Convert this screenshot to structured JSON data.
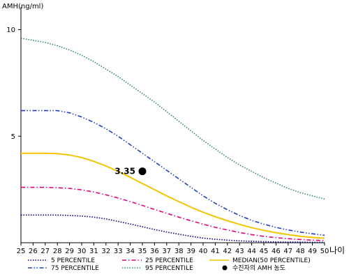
{
  "chart_data": {
    "type": "line",
    "ylabel": "AMH(ng/ml)",
    "xlabel": "나이",
    "x": [
      25,
      26,
      27,
      28,
      29,
      30,
      31,
      32,
      33,
      34,
      35,
      36,
      37,
      38,
      39,
      40,
      41,
      42,
      43,
      44,
      45,
      46,
      47,
      48,
      49,
      50
    ],
    "xlim": [
      25,
      50
    ],
    "ylim": [
      0,
      11
    ],
    "yticks": [
      5,
      10
    ],
    "series": [
      {
        "name": "5 PERCENTILE",
        "color": "#000080",
        "style": "dotted",
        "values": [
          1.3,
          1.3,
          1.3,
          1.3,
          1.28,
          1.25,
          1.2,
          1.12,
          1.0,
          0.88,
          0.75,
          0.62,
          0.5,
          0.4,
          0.3,
          0.22,
          0.16,
          0.12,
          0.09,
          0.07,
          0.05,
          0.04,
          0.03,
          0.03,
          0.02,
          0.02
        ]
      },
      {
        "name": "25 PERCENTILE",
        "color": "#e6007e",
        "style": "dashdot",
        "values": [
          2.6,
          2.6,
          2.6,
          2.58,
          2.55,
          2.48,
          2.38,
          2.25,
          2.1,
          1.93,
          1.75,
          1.56,
          1.38,
          1.2,
          1.03,
          0.87,
          0.72,
          0.6,
          0.48,
          0.38,
          0.3,
          0.24,
          0.19,
          0.15,
          0.12,
          0.1
        ]
      },
      {
        "name": "75 PERCENTILE",
        "color": "#1f3fbf",
        "style": "dashdotdot",
        "values": [
          6.2,
          6.2,
          6.2,
          6.2,
          6.1,
          5.9,
          5.65,
          5.35,
          5.0,
          4.6,
          4.2,
          3.8,
          3.4,
          3.0,
          2.6,
          2.2,
          1.85,
          1.55,
          1.28,
          1.05,
          0.87,
          0.72,
          0.6,
          0.5,
          0.42,
          0.35
        ]
      },
      {
        "name": "95 PERCENTILE",
        "color": "#2e8b57",
        "style": "dotted",
        "values": [
          9.6,
          9.5,
          9.4,
          9.25,
          9.05,
          8.8,
          8.5,
          8.15,
          7.8,
          7.4,
          7.0,
          6.6,
          6.15,
          5.7,
          5.25,
          4.8,
          4.4,
          4.0,
          3.65,
          3.35,
          3.05,
          2.8,
          2.55,
          2.35,
          2.2,
          2.05
        ]
      },
      {
        "name": "MEDIAN(50 PERCENTILE)",
        "color": "#f5c400",
        "style": "solid",
        "values": [
          4.2,
          4.2,
          4.2,
          4.18,
          4.12,
          4.0,
          3.82,
          3.6,
          3.35,
          3.07,
          2.78,
          2.49,
          2.2,
          1.93,
          1.67,
          1.43,
          1.22,
          1.03,
          0.86,
          0.71,
          0.58,
          0.47,
          0.38,
          0.3,
          0.25,
          0.21
        ]
      }
    ],
    "points": [
      {
        "name": "수진자의 AMH 농도",
        "x": 35,
        "y": 3.35,
        "label": "3.35"
      }
    ],
    "legend": {
      "placement": "bottom",
      "items": [
        {
          "label": "5 PERCENTILE",
          "color": "#000080",
          "style": "dotted"
        },
        {
          "label": "25 PERCENTILE",
          "color": "#e6007e",
          "style": "dashdot"
        },
        {
          "label": "MEDIAN(50 PERCENTILE)",
          "color": "#f5c400",
          "style": "solid"
        },
        {
          "label": "75 PERCENTILE",
          "color": "#1f3fbf",
          "style": "dashdotdot"
        },
        {
          "label": "95 PERCENTILE",
          "color": "#2e8b57",
          "style": "dotted"
        },
        {
          "label": "수진자의 AMH 농도",
          "color": "#000000",
          "style": "marker"
        }
      ]
    }
  }
}
